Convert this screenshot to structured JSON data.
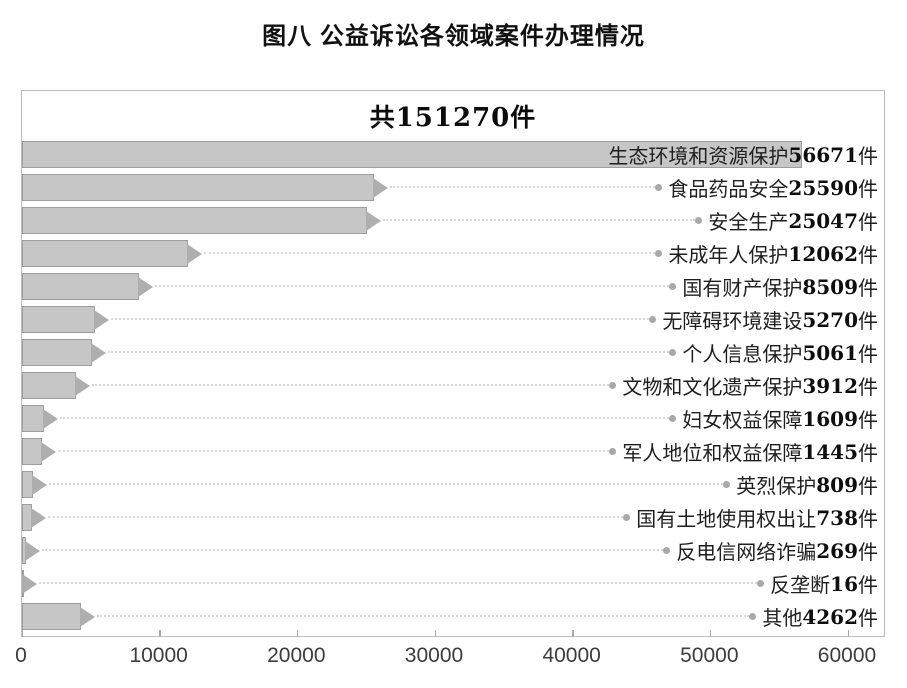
{
  "page": {
    "title": "图八  公益诉讼各领域案件办理情况"
  },
  "chart_data": {
    "type": "bar",
    "orientation": "horizontal",
    "title": "图八 公益诉讼各领域案件办理情况",
    "total_label": {
      "prefix": "共",
      "number": "151270",
      "suffix": "件"
    },
    "total": 151270,
    "unit": "件",
    "categories": [
      "生态环境和资源保护",
      "食品药品安全",
      "安全生产",
      "未成年人保护",
      "国有财产保护",
      "无障碍环境建设",
      "个人信息保护",
      "文物和文化遗产保护",
      "妇女权益保障",
      "军人地位和权益保障",
      "英烈保护",
      "国有土地使用权出让",
      "反电信网络诈骗",
      "反垄断",
      "其他"
    ],
    "values": [
      56671,
      25590,
      25047,
      12062,
      8509,
      5270,
      5061,
      3912,
      1609,
      1445,
      809,
      738,
      269,
      16,
      4262
    ],
    "xlim": [
      0,
      60000
    ],
    "xticks": [
      0,
      10000,
      20000,
      30000,
      40000,
      50000,
      60000
    ],
    "grid": false,
    "legend": false,
    "label_position": "right-aligned-with-leader-lines",
    "colors": {
      "bar_fill": "#c6c6c6",
      "bar_border": "#9e9e9e",
      "arrow": "#aeaeae",
      "leader": "#d8d8d8",
      "dot": "#a8a8a8",
      "box_border": "#bdbdbd",
      "text": "#1f1f1f",
      "tick_text": "#3c3c3c"
    }
  }
}
